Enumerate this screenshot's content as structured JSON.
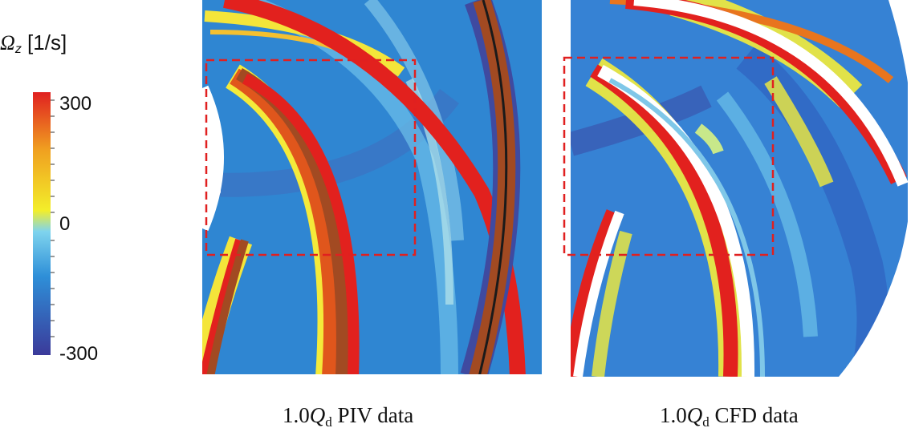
{
  "colorbar": {
    "symbol": "Ω",
    "subscript": "z",
    "unit": "[1/s]",
    "ticks": [
      "300",
      "0",
      "-300"
    ],
    "range": [
      -300,
      300
    ],
    "colors": [
      "#3b3a9a",
      "#2e8fd8",
      "#7fd4ee",
      "#f3ee2a",
      "#f0a020",
      "#e02020"
    ]
  },
  "chart_data": {
    "type": "heatmap",
    "quantity": "Ωz [1/s]",
    "clim": [
      -300,
      300
    ],
    "panels": [
      {
        "title": "1.0Qd PIV data",
        "coef": "1.0",
        "q": "Q",
        "sub": "d",
        "rest": " PIV data",
        "highlight": "dashed red rectangle"
      },
      {
        "title": "1.0Qd CFD data",
        "coef": "1.0",
        "q": "Q",
        "sub": "d",
        "rest": " CFD data",
        "highlight": "dashed red rectangle"
      }
    ]
  }
}
